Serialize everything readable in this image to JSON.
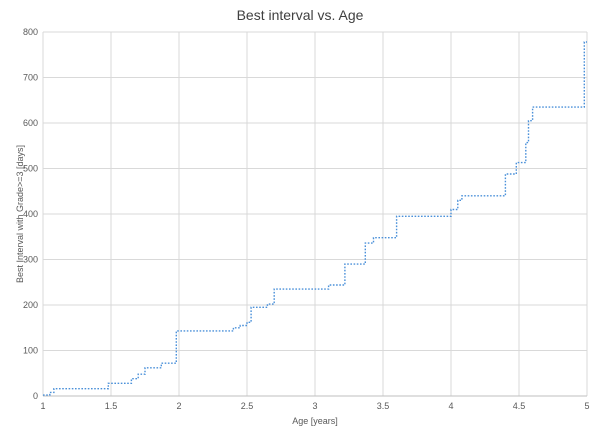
{
  "chart_data": {
    "type": "line",
    "title": "Best interval vs. Age",
    "xlabel": "Age [years]",
    "ylabel": "Best Interval with Grade>=3 [days]",
    "xlim": [
      1,
      5
    ],
    "ylim": [
      0,
      800
    ],
    "x_ticks": [
      "1",
      "1.5",
      "2",
      "2.5",
      "3",
      "3.5",
      "4",
      "4.5",
      "5"
    ],
    "y_ticks": [
      "0",
      "100",
      "200",
      "300",
      "400",
      "500",
      "600",
      "700",
      "800"
    ],
    "grid": "both",
    "line_style": "step",
    "series": [
      {
        "color": "#4a90d9",
        "points": [
          [
            1.0,
            2
          ],
          [
            1.05,
            8
          ],
          [
            1.08,
            16
          ],
          [
            1.48,
            28
          ],
          [
            1.65,
            38
          ],
          [
            1.7,
            48
          ],
          [
            1.75,
            62
          ],
          [
            1.87,
            72
          ],
          [
            1.98,
            143
          ],
          [
            2.4,
            150
          ],
          [
            2.45,
            155
          ],
          [
            2.5,
            162
          ],
          [
            2.53,
            195
          ],
          [
            2.65,
            202
          ],
          [
            2.7,
            235
          ],
          [
            3.1,
            244
          ],
          [
            3.22,
            290
          ],
          [
            3.37,
            336
          ],
          [
            3.43,
            348
          ],
          [
            3.6,
            395
          ],
          [
            4.0,
            410
          ],
          [
            4.05,
            430
          ],
          [
            4.08,
            440
          ],
          [
            4.4,
            488
          ],
          [
            4.48,
            513
          ],
          [
            4.55,
            557
          ],
          [
            4.57,
            605
          ],
          [
            4.6,
            635
          ],
          [
            4.98,
            778
          ],
          [
            5.0,
            778
          ]
        ]
      }
    ]
  }
}
